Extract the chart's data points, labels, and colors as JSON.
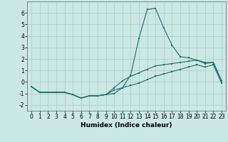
{
  "x": [
    0,
    1,
    2,
    3,
    4,
    5,
    6,
    7,
    8,
    9,
    10,
    11,
    12,
    13,
    14,
    15,
    16,
    17,
    18,
    19,
    20,
    21,
    22,
    23
  ],
  "line1": [
    -0.4,
    -0.9,
    -0.9,
    -0.9,
    -0.9,
    -1.1,
    -1.4,
    -1.2,
    -1.2,
    -1.1,
    -1.0,
    -0.5,
    0.6,
    3.8,
    6.3,
    6.4,
    4.7,
    3.2,
    2.2,
    2.1,
    1.9,
    1.7,
    1.7,
    0.1
  ],
  "line2": [
    -0.4,
    -0.9,
    -0.9,
    -0.9,
    -0.9,
    -1.1,
    -1.4,
    -1.2,
    -1.2,
    -1.1,
    -0.5,
    0.1,
    0.5,
    0.8,
    1.1,
    1.4,
    1.5,
    1.6,
    1.7,
    1.8,
    1.9,
    1.6,
    1.7,
    0.1
  ],
  "line3": [
    -0.4,
    -0.9,
    -0.9,
    -0.9,
    -0.9,
    -1.1,
    -1.4,
    -1.2,
    -1.2,
    -1.1,
    -0.7,
    -0.5,
    -0.3,
    -0.1,
    0.2,
    0.5,
    0.7,
    0.9,
    1.1,
    1.3,
    1.5,
    1.3,
    1.5,
    -0.1
  ],
  "bg_color": "#cce8e4",
  "grid_color": "#aaccca",
  "line_color": "#1a6b6b",
  "xlabel": "Humidex (Indice chaleur)",
  "ylim": [
    -2.5,
    7.0
  ],
  "xlim": [
    -0.5,
    23.5
  ],
  "yticks": [
    -2,
    -1,
    0,
    1,
    2,
    3,
    4,
    5,
    6
  ],
  "xticks": [
    0,
    1,
    2,
    3,
    4,
    5,
    6,
    7,
    8,
    9,
    10,
    11,
    12,
    13,
    14,
    15,
    16,
    17,
    18,
    19,
    20,
    21,
    22,
    23
  ],
  "xlabel_fontsize": 6.5,
  "tick_fontsize": 5.5,
  "marker_size": 1.8,
  "line_width": 0.8
}
